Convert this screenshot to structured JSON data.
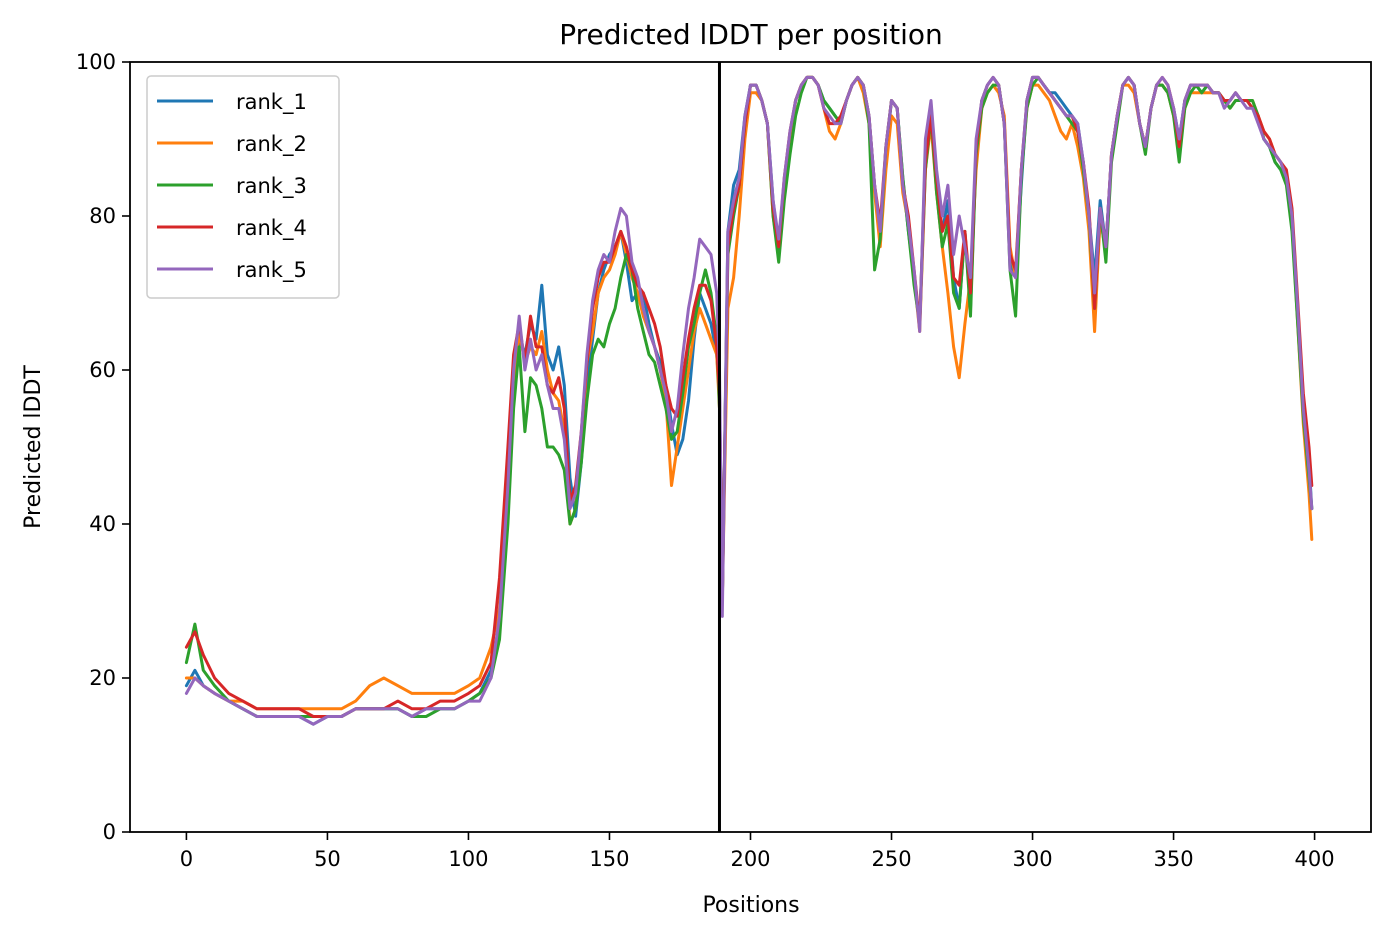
{
  "chart_data": {
    "type": "line",
    "title": "Predicted lDDT per position",
    "xlabel": "Positions",
    "ylabel": "Predicted lDDT",
    "xlim": [
      -20,
      420
    ],
    "ylim": [
      0,
      100
    ],
    "xticks": [
      0,
      50,
      100,
      150,
      200,
      250,
      300,
      350,
      400
    ],
    "yticks": [
      0,
      20,
      40,
      60,
      80,
      100
    ],
    "grid": false,
    "legend_position": "upper-left",
    "vline": {
      "x": 189,
      "color": "#000000"
    },
    "x": [
      0,
      3,
      6,
      10,
      15,
      20,
      25,
      30,
      35,
      40,
      45,
      50,
      55,
      60,
      65,
      70,
      75,
      80,
      85,
      90,
      95,
      100,
      104,
      108,
      111,
      114,
      116,
      118,
      120,
      122,
      124,
      126,
      128,
      130,
      132,
      134,
      136,
      138,
      140,
      142,
      144,
      146,
      148,
      150,
      152,
      154,
      156,
      158,
      160,
      162,
      164,
      166,
      168,
      170,
      172,
      174,
      176,
      178,
      180,
      182,
      184,
      186,
      188,
      189,
      190,
      192,
      194,
      196,
      198,
      200,
      202,
      204,
      206,
      208,
      210,
      212,
      214,
      216,
      218,
      220,
      222,
      224,
      226,
      228,
      230,
      232,
      234,
      236,
      238,
      240,
      242,
      244,
      246,
      248,
      250,
      252,
      254,
      256,
      258,
      260,
      262,
      264,
      266,
      268,
      270,
      272,
      274,
      276,
      278,
      280,
      282,
      284,
      286,
      288,
      290,
      292,
      294,
      296,
      298,
      300,
      302,
      304,
      306,
      308,
      310,
      312,
      314,
      316,
      318,
      320,
      322,
      324,
      326,
      328,
      330,
      332,
      334,
      336,
      338,
      340,
      342,
      344,
      346,
      348,
      350,
      352,
      354,
      356,
      358,
      360,
      362,
      364,
      366,
      368,
      370,
      372,
      374,
      376,
      378,
      380,
      382,
      384,
      386,
      388,
      390,
      392,
      394,
      396,
      398,
      399
    ],
    "series": [
      {
        "name": "rank_1",
        "color": "#1f77b4",
        "values": [
          19,
          21,
          19,
          18,
          17,
          16,
          15,
          15,
          15,
          15,
          14,
          15,
          15,
          16,
          16,
          16,
          16,
          15,
          16,
          16,
          16,
          17,
          18,
          21,
          26,
          42,
          58,
          64,
          62,
          66,
          64,
          71,
          62,
          60,
          63,
          58,
          46,
          41,
          48,
          58,
          64,
          70,
          73,
          75,
          76,
          78,
          74,
          69,
          70,
          70,
          66,
          63,
          61,
          58,
          53,
          49,
          51,
          56,
          64,
          70,
          68,
          66,
          62,
          57,
          30,
          78,
          84,
          86,
          93,
          97,
          97,
          95,
          92,
          82,
          76,
          84,
          90,
          95,
          97,
          98,
          98,
          97,
          95,
          94,
          93,
          92,
          95,
          97,
          98,
          97,
          93,
          84,
          77,
          88,
          95,
          94,
          85,
          78,
          72,
          66,
          88,
          94,
          84,
          78,
          82,
          72,
          68,
          78,
          68,
          88,
          95,
          97,
          98,
          97,
          92,
          74,
          72,
          84,
          95,
          98,
          98,
          97,
          96,
          96,
          95,
          94,
          93,
          92,
          87,
          80,
          72,
          82,
          76,
          88,
          93,
          97,
          98,
          97,
          92,
          89,
          94,
          97,
          97,
          96,
          94,
          90,
          95,
          97,
          97,
          96,
          97,
          96,
          96,
          95,
          95,
          96,
          95,
          95,
          94,
          93,
          90,
          89,
          87,
          86,
          85,
          79,
          68,
          56,
          48,
          42
        ]
      },
      {
        "name": "rank_2",
        "color": "#ff7f0e",
        "values": [
          20,
          20,
          19,
          18,
          17,
          17,
          16,
          16,
          16,
          16,
          16,
          16,
          16,
          17,
          19,
          20,
          19,
          18,
          18,
          18,
          18,
          19,
          20,
          24,
          29,
          44,
          57,
          65,
          61,
          63,
          62,
          65,
          60,
          57,
          56,
          52,
          40,
          42,
          50,
          61,
          65,
          70,
          72,
          73,
          75,
          78,
          75,
          72,
          70,
          67,
          65,
          63,
          60,
          56,
          45,
          50,
          55,
          60,
          65,
          68,
          66,
          64,
          62,
          55,
          30,
          68,
          72,
          80,
          90,
          96,
          96,
          95,
          92,
          80,
          75,
          84,
          90,
          95,
          97,
          98,
          98,
          97,
          94,
          91,
          90,
          92,
          95,
          97,
          98,
          96,
          92,
          83,
          76,
          86,
          93,
          92,
          83,
          79,
          72,
          65,
          86,
          92,
          83,
          76,
          70,
          63,
          59,
          66,
          72,
          86,
          94,
          96,
          97,
          96,
          93,
          76,
          72,
          86,
          94,
          97,
          97,
          96,
          95,
          93,
          91,
          90,
          92,
          89,
          85,
          78,
          65,
          80,
          75,
          88,
          93,
          97,
          97,
          96,
          92,
          89,
          94,
          97,
          97,
          96,
          93,
          89,
          94,
          96,
          96,
          96,
          96,
          96,
          96,
          95,
          94,
          95,
          95,
          95,
          95,
          93,
          91,
          90,
          88,
          87,
          85,
          79,
          66,
          53,
          44,
          38
        ]
      },
      {
        "name": "rank_3",
        "color": "#2ca02c",
        "values": [
          22,
          27,
          21,
          19,
          17,
          16,
          15,
          15,
          15,
          15,
          15,
          15,
          15,
          16,
          16,
          16,
          16,
          15,
          15,
          16,
          16,
          17,
          18,
          20,
          25,
          40,
          55,
          63,
          52,
          59,
          58,
          55,
          50,
          50,
          49,
          47,
          40,
          42,
          48,
          56,
          62,
          64,
          63,
          66,
          68,
          72,
          75,
          73,
          68,
          65,
          62,
          61,
          58,
          55,
          51,
          52,
          57,
          63,
          66,
          70,
          73,
          70,
          64,
          55,
          30,
          75,
          80,
          84,
          92,
          97,
          97,
          95,
          92,
          80,
          74,
          82,
          88,
          93,
          96,
          98,
          98,
          97,
          95,
          94,
          93,
          92,
          95,
          97,
          98,
          97,
          92,
          73,
          77,
          89,
          95,
          94,
          85,
          78,
          71,
          66,
          86,
          93,
          83,
          76,
          79,
          70,
          68,
          78,
          67,
          88,
          94,
          96,
          97,
          97,
          92,
          73,
          67,
          85,
          94,
          97,
          98,
          97,
          96,
          95,
          94,
          93,
          92,
          91,
          86,
          80,
          68,
          81,
          74,
          87,
          92,
          97,
          98,
          97,
          92,
          88,
          94,
          97,
          97,
          96,
          93,
          87,
          94,
          96,
          97,
          96,
          97,
          96,
          96,
          95,
          94,
          95,
          95,
          95,
          95,
          93,
          90,
          89,
          87,
          86,
          84,
          78,
          66,
          54,
          46,
          42
        ]
      },
      {
        "name": "rank_4",
        "color": "#d62728",
        "values": [
          24,
          26,
          23,
          20,
          18,
          17,
          16,
          16,
          16,
          16,
          15,
          15,
          15,
          16,
          16,
          16,
          17,
          16,
          16,
          17,
          17,
          18,
          19,
          22,
          33,
          50,
          62,
          66,
          61,
          67,
          63,
          63,
          58,
          57,
          59,
          55,
          43,
          45,
          52,
          61,
          68,
          72,
          74,
          74,
          76,
          78,
          76,
          73,
          71,
          70,
          68,
          66,
          63,
          58,
          55,
          54,
          59,
          64,
          68,
          71,
          71,
          69,
          63,
          57,
          30,
          76,
          81,
          84,
          92,
          97,
          97,
          95,
          92,
          81,
          76,
          85,
          91,
          95,
          97,
          98,
          98,
          97,
          94,
          92,
          92,
          93,
          95,
          97,
          98,
          97,
          93,
          84,
          79,
          89,
          95,
          94,
          84,
          80,
          73,
          66,
          87,
          93,
          85,
          78,
          80,
          72,
          71,
          78,
          70,
          89,
          95,
          97,
          98,
          97,
          92,
          75,
          73,
          86,
          95,
          98,
          98,
          97,
          96,
          95,
          94,
          93,
          93,
          91,
          87,
          81,
          68,
          81,
          76,
          88,
          93,
          97,
          98,
          97,
          92,
          89,
          94,
          97,
          98,
          97,
          94,
          89,
          95,
          97,
          97,
          97,
          97,
          96,
          96,
          95,
          95,
          96,
          95,
          95,
          94,
          93,
          91,
          90,
          88,
          87,
          86,
          81,
          69,
          57,
          50,
          45
        ]
      },
      {
        "name": "rank_5",
        "color": "#9467bd",
        "values": [
          18,
          20,
          19,
          18,
          17,
          16,
          15,
          15,
          15,
          15,
          14,
          15,
          15,
          16,
          16,
          16,
          16,
          15,
          16,
          16,
          16,
          17,
          17,
          20,
          28,
          45,
          60,
          67,
          60,
          64,
          60,
          62,
          58,
          55,
          55,
          51,
          42,
          44,
          52,
          62,
          69,
          73,
          75,
          74,
          78,
          81,
          80,
          74,
          72,
          68,
          65,
          63,
          60,
          57,
          52,
          55,
          62,
          68,
          72,
          77,
          76,
          75,
          70,
          60,
          28,
          78,
          82,
          85,
          93,
          97,
          97,
          95,
          92,
          82,
          77,
          85,
          91,
          95,
          97,
          98,
          98,
          97,
          94,
          93,
          92,
          92,
          95,
          97,
          98,
          97,
          93,
          84,
          78,
          89,
          95,
          94,
          84,
          79,
          73,
          65,
          90,
          95,
          86,
          80,
          84,
          75,
          80,
          76,
          72,
          90,
          95,
          97,
          98,
          97,
          92,
          73,
          72,
          86,
          95,
          98,
          98,
          97,
          96,
          95,
          94,
          93,
          93,
          92,
          87,
          80,
          70,
          81,
          76,
          88,
          93,
          97,
          98,
          97,
          92,
          89,
          94,
          97,
          98,
          97,
          94,
          90,
          95,
          97,
          97,
          97,
          97,
          96,
          96,
          94,
          95,
          96,
          95,
          94,
          94,
          92,
          90,
          89,
          88,
          87,
          85,
          80,
          68,
          55,
          47,
          42
        ]
      }
    ]
  }
}
